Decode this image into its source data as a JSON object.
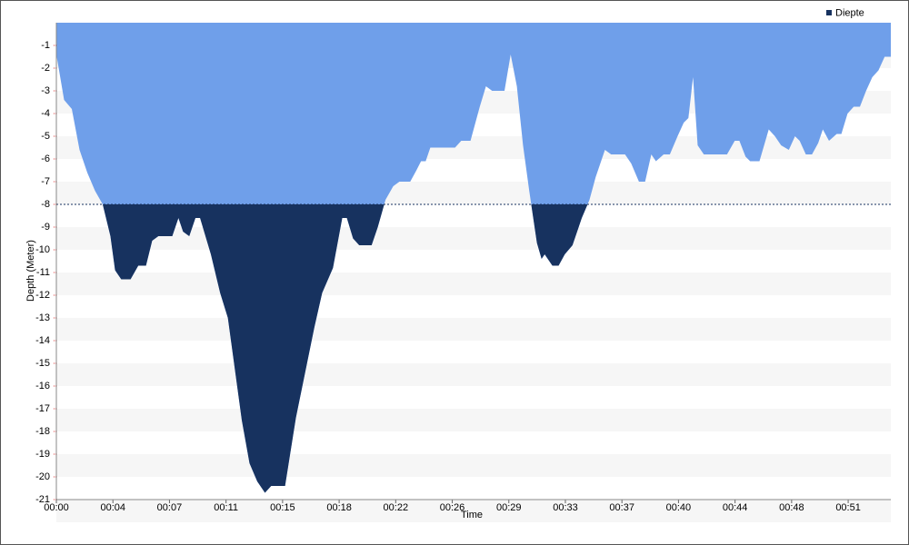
{
  "chart_data": {
    "type": "area",
    "xlabel": "Time",
    "ylabel": "Depth (Meter)",
    "legend": "top-right",
    "threshold": -8,
    "threshold_color": "#17325f",
    "x": [
      0,
      0.5,
      1.0,
      1.5,
      2.0,
      2.5,
      3.0,
      3.5,
      3.8,
      4.2,
      4.8,
      5.3,
      5.8,
      6.2,
      6.6,
      7.5,
      7.9,
      8.2,
      8.6,
      9.0,
      9.3,
      10.0,
      10.6,
      11.1,
      11.5,
      12.0,
      12.5,
      13.0,
      13.5,
      13.9,
      14.8,
      15.5,
      16.1,
      16.7,
      17.2,
      17.9,
      18.5,
      18.8,
      19.2,
      19.6,
      20.4,
      20.8,
      21.3,
      21.8,
      22.2,
      22.9,
      23.3,
      23.6,
      23.9,
      24.2,
      25.8,
      26.2,
      26.8,
      27.4,
      27.8,
      28.2,
      29.0,
      29.4,
      29.8,
      30.2,
      30.6,
      31.1,
      31.4,
      31.6,
      32.1,
      32.5,
      32.9,
      33.4,
      34.0,
      34.5,
      34.9,
      35.5,
      35.9,
      36.8,
      37.2,
      37.7,
      38.1,
      38.5,
      38.8,
      39.3,
      39.7,
      40.2,
      40.6,
      40.9,
      41.2,
      41.5,
      41.9,
      43.4,
      43.9,
      44.2,
      44.6,
      44.9,
      45.5,
      46.1,
      46.5,
      46.9,
      47.4,
      47.8,
      48.1,
      48.5,
      48.9,
      49.3,
      49.6,
      50.0,
      50.5,
      50.8,
      51.2,
      51.6,
      52.0,
      52.4,
      52.8,
      53.2,
      53.6,
      54.0
    ],
    "series": [
      {
        "name": "Diepte",
        "color": "#6f9fea",
        "legend_color": "#17325f",
        "values": [
          -1.4,
          -3.4,
          -3.8,
          -5.6,
          -6.6,
          -7.4,
          -8,
          -9.4,
          -10.9,
          -11.3,
          -11.3,
          -10.7,
          -10.7,
          -9.6,
          -9.4,
          -9.4,
          -8.6,
          -9.2,
          -9.4,
          -8.6,
          -8.6,
          -10.2,
          -11.9,
          -13,
          -15,
          -17.5,
          -19.4,
          -20.2,
          -20.7,
          -20.4,
          -20.4,
          -17.4,
          -15.4,
          -13.4,
          -11.9,
          -10.8,
          -8.6,
          -8.6,
          -9.5,
          -9.8,
          -9.8,
          -9,
          -7.8,
          -7.2,
          -7,
          -7,
          -6.5,
          -6.1,
          -6.1,
          -5.5,
          -5.5,
          -5.2,
          -5.2,
          -3.7,
          -2.8,
          -3,
          -3,
          -1.4,
          -2.8,
          -5.4,
          -7.4,
          -9.7,
          -10.4,
          -10.2,
          -10.7,
          -10.7,
          -10.2,
          -9.8,
          -8.6,
          -7.8,
          -6.8,
          -5.6,
          -5.8,
          -5.8,
          -6.2,
          -7,
          -7,
          -5.8,
          -6.1,
          -5.8,
          -5.8,
          -5,
          -4.4,
          -4.2,
          -2.4,
          -5.4,
          -5.8,
          -5.8,
          -5.2,
          -5.2,
          -5.9,
          -6.1,
          -6.1,
          -4.7,
          -5,
          -5.4,
          -5.6,
          -5,
          -5.2,
          -5.8,
          -5.8,
          -5.3,
          -4.7,
          -5.2,
          -4.9,
          -4.9,
          -4,
          -3.7,
          -3.7,
          -3,
          -2.4,
          -2.1,
          -1.5,
          -1.5
        ]
      }
    ],
    "xlim": [
      0,
      54
    ],
    "xticks": [
      {
        "value": 0,
        "label": "00:00"
      },
      {
        "value": 3.66,
        "label": "00:04"
      },
      {
        "value": 7.32,
        "label": "00:07"
      },
      {
        "value": 10.98,
        "label": "00:11"
      },
      {
        "value": 14.64,
        "label": "00:15"
      },
      {
        "value": 18.3,
        "label": "00:18"
      },
      {
        "value": 21.96,
        "label": "00:22"
      },
      {
        "value": 25.62,
        "label": "00:26"
      },
      {
        "value": 29.28,
        "label": "00:29"
      },
      {
        "value": 32.94,
        "label": "00:33"
      },
      {
        "value": 36.6,
        "label": "00:37"
      },
      {
        "value": 40.26,
        "label": "00:40"
      },
      {
        "value": 43.92,
        "label": "00:44"
      },
      {
        "value": 47.58,
        "label": "00:48"
      },
      {
        "value": 51.24,
        "label": "00:51"
      }
    ],
    "ylim": [
      -21,
      0
    ],
    "yticks": [
      -1,
      -2,
      -3,
      -4,
      -5,
      -6,
      -7,
      -8,
      -9,
      -10,
      -11,
      -12,
      -13,
      -14,
      -15,
      -16,
      -17,
      -18,
      -19,
      -20,
      -21
    ],
    "grid": "bands"
  }
}
